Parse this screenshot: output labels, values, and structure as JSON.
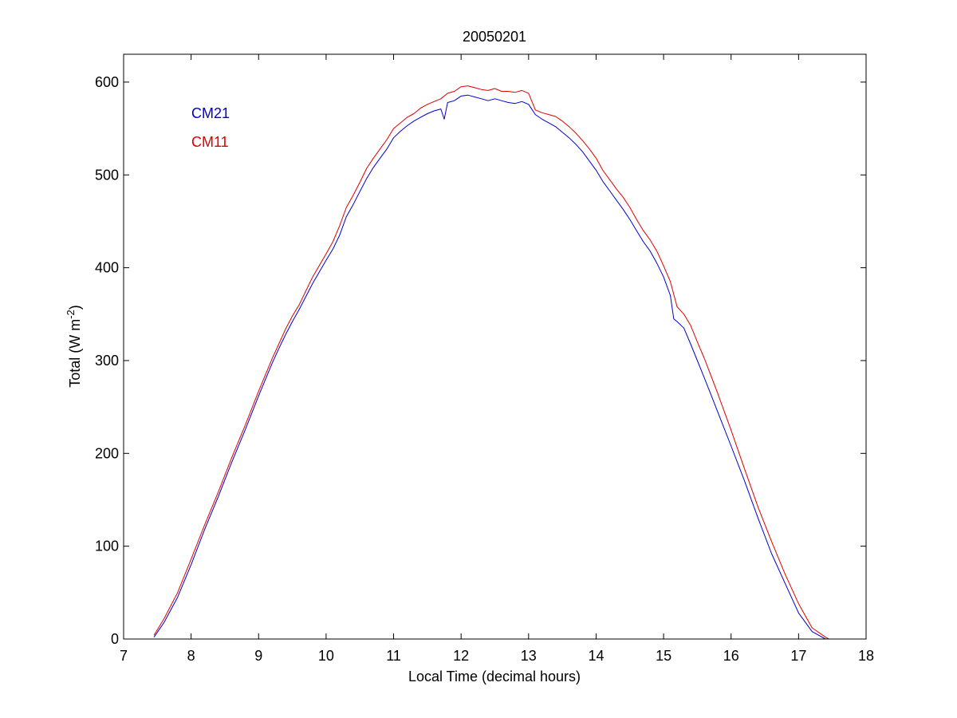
{
  "chart_data": {
    "type": "line",
    "title": "20050201",
    "xlabel": "Local Time (decimal hours)",
    "ylabel_main": "Total (W m",
    "ylabel_sup": "-2",
    "ylabel_close": ")",
    "xlim": [
      7,
      18
    ],
    "ylim": [
      0,
      630
    ],
    "xticks": [
      7,
      8,
      9,
      10,
      11,
      12,
      13,
      14,
      15,
      16,
      17,
      18
    ],
    "yticks": [
      0,
      100,
      200,
      300,
      400,
      500,
      600
    ],
    "grid": false,
    "legend_position": "top-left",
    "series": [
      {
        "name": "CM21",
        "color": "#0000cc",
        "x": [
          7.45,
          7.6,
          7.8,
          8.0,
          8.2,
          8.4,
          8.6,
          8.8,
          9.0,
          9.2,
          9.3,
          9.4,
          9.5,
          9.6,
          9.8,
          10.0,
          10.1,
          10.2,
          10.3,
          10.4,
          10.5,
          10.6,
          10.7,
          10.8,
          10.9,
          11.0,
          11.1,
          11.2,
          11.3,
          11.4,
          11.5,
          11.6,
          11.7,
          11.75,
          11.8,
          11.9,
          12.0,
          12.1,
          12.2,
          12.3,
          12.4,
          12.5,
          12.6,
          12.7,
          12.8,
          12.9,
          13.0,
          13.1,
          13.2,
          13.3,
          13.4,
          13.5,
          13.6,
          13.7,
          13.8,
          13.9,
          14.0,
          14.1,
          14.2,
          14.3,
          14.4,
          14.5,
          14.6,
          14.7,
          14.8,
          14.9,
          15.0,
          15.1,
          15.15,
          15.2,
          15.3,
          15.4,
          15.5,
          15.6,
          15.8,
          16.0,
          16.2,
          16.4,
          16.6,
          16.8,
          17.0,
          17.2,
          17.4,
          17.42
        ],
        "y": [
          2,
          18,
          45,
          80,
          118,
          153,
          190,
          225,
          262,
          297,
          313,
          328,
          342,
          355,
          383,
          408,
          420,
          435,
          455,
          468,
          482,
          496,
          508,
          518,
          528,
          540,
          547,
          553,
          558,
          562,
          566,
          569,
          571,
          560,
          578,
          580,
          585,
          586,
          584,
          582,
          580,
          582,
          580,
          578,
          577,
          579,
          576,
          565,
          560,
          556,
          552,
          546,
          540,
          533,
          525,
          515,
          505,
          493,
          483,
          473,
          463,
          452,
          440,
          428,
          418,
          405,
          390,
          370,
          345,
          342,
          335,
          318,
          300,
          282,
          245,
          208,
          170,
          130,
          92,
          60,
          28,
          8,
          0,
          0
        ]
      },
      {
        "name": "CM11",
        "color": "#dd0000",
        "x": [
          7.45,
          7.6,
          7.8,
          8.0,
          8.2,
          8.4,
          8.6,
          8.8,
          9.0,
          9.2,
          9.3,
          9.4,
          9.5,
          9.6,
          9.8,
          10.0,
          10.1,
          10.2,
          10.3,
          10.4,
          10.5,
          10.6,
          10.7,
          10.8,
          10.9,
          11.0,
          11.1,
          11.2,
          11.3,
          11.4,
          11.5,
          11.6,
          11.7,
          11.8,
          11.9,
          12.0,
          12.1,
          12.2,
          12.3,
          12.4,
          12.5,
          12.6,
          12.7,
          12.8,
          12.9,
          13.0,
          13.1,
          13.2,
          13.3,
          13.4,
          13.5,
          13.6,
          13.7,
          13.8,
          13.9,
          14.0,
          14.1,
          14.2,
          14.3,
          14.4,
          14.5,
          14.6,
          14.7,
          14.8,
          14.9,
          15.0,
          15.1,
          15.2,
          15.3,
          15.4,
          15.5,
          15.6,
          15.8,
          16.0,
          16.2,
          16.4,
          16.6,
          16.8,
          17.0,
          17.2,
          17.4,
          17.45
        ],
        "y": [
          4,
          22,
          50,
          86,
          123,
          158,
          195,
          230,
          267,
          302,
          318,
          334,
          348,
          360,
          390,
          415,
          428,
          445,
          465,
          478,
          492,
          507,
          518,
          528,
          538,
          550,
          556,
          562,
          566,
          572,
          576,
          579,
          582,
          588,
          590,
          595,
          596,
          594,
          592,
          591,
          593,
          590,
          590,
          589,
          591,
          588,
          570,
          567,
          565,
          563,
          558,
          552,
          545,
          537,
          528,
          518,
          505,
          495,
          485,
          476,
          465,
          452,
          440,
          430,
          418,
          402,
          385,
          358,
          350,
          338,
          320,
          303,
          265,
          225,
          183,
          142,
          105,
          70,
          38,
          12,
          2,
          0
        ]
      }
    ]
  }
}
